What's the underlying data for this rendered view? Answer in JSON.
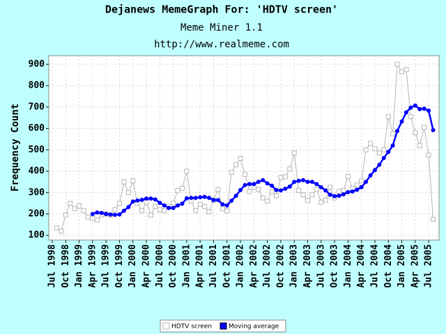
{
  "chart_data": {
    "type": "line",
    "title": "Dejanews MemeGraph For: 'HDTV screen'",
    "subtitle": "Meme Miner 1.1",
    "source": "http://www.realmeme.com",
    "y_label": "Frequency Count",
    "categories": [
      "Jul 1998",
      null,
      null,
      "Oct 1998",
      null,
      null,
      "Jan 1999",
      null,
      null,
      "Apr 1999",
      null,
      null,
      "Jul 1999",
      null,
      null,
      "Oct 1999",
      null,
      null,
      "Jan 2000",
      null,
      null,
      "Apr 2000",
      null,
      null,
      "Jul 2000",
      null,
      null,
      "Oct 2000",
      null,
      null,
      "Jan 2001",
      null,
      null,
      "Apr 2001",
      null,
      null,
      "Jul 2001",
      null,
      null,
      "Oct 2001",
      null,
      null,
      "Jan 2002",
      null,
      null,
      "Apr 2002",
      null,
      null,
      "Jul 2002",
      null,
      null,
      "Oct 2002",
      null,
      null,
      "Jan 2003",
      null,
      null,
      "Apr 2003",
      null,
      null,
      "Jul 2003",
      null,
      null,
      "Oct 2003",
      null,
      null,
      "Jan 2004",
      null,
      null,
      "Apr 2004",
      null,
      null,
      "Jul 2004",
      null,
      null,
      "Oct 2004",
      null,
      null,
      "Jan 2005",
      null,
      null,
      "Apr 2005",
      null,
      null,
      "Jul 2005",
      null
    ],
    "series": [
      {
        "name": "HDTV screen",
        "color": "#b4b4b4",
        "marker": "square",
        "values": [
          null,
          135,
          120,
          195,
          250,
          225,
          237,
          215,
          185,
          180,
          172,
          195,
          200,
          195,
          220,
          250,
          350,
          300,
          355,
          250,
          215,
          255,
          195,
          235,
          220,
          215,
          235,
          250,
          310,
          320,
          400,
          260,
          215,
          245,
          235,
          210,
          265,
          315,
          225,
          215,
          395,
          430,
          460,
          385,
          305,
          325,
          315,
          275,
          260,
          305,
          285,
          370,
          375,
          410,
          485,
          310,
          290,
          262,
          290,
          315,
          255,
          265,
          325,
          275,
          305,
          310,
          375,
          320,
          335,
          355,
          500,
          530,
          505,
          485,
          500,
          655,
          575,
          900,
          865,
          875,
          655,
          580,
          520,
          605,
          475,
          175
        ]
      },
      {
        "name": "Moving average",
        "color": "#0000ff",
        "marker": "circle",
        "values": [
          null,
          null,
          null,
          null,
          null,
          null,
          null,
          null,
          null,
          200,
          207,
          205,
          200,
          197,
          196,
          198,
          215,
          232,
          258,
          263,
          266,
          272,
          272,
          268,
          252,
          240,
          228,
          228,
          240,
          248,
          273,
          275,
          275,
          278,
          280,
          275,
          265,
          265,
          245,
          240,
          262,
          285,
          312,
          335,
          340,
          340,
          350,
          358,
          343,
          332,
          312,
          310,
          318,
          328,
          350,
          355,
          358,
          350,
          350,
          340,
          325,
          310,
          290,
          283,
          285,
          292,
          302,
          305,
          313,
          325,
          350,
          380,
          405,
          430,
          462,
          490,
          520,
          588,
          632,
          675,
          697,
          707,
          690,
          692,
          683,
          592
        ]
      }
    ],
    "ylim": [
      78,
      940
    ],
    "yticks": [
      100,
      200,
      300,
      400,
      500,
      600,
      700,
      800,
      900
    ],
    "grid": true,
    "legend": "bottom"
  }
}
